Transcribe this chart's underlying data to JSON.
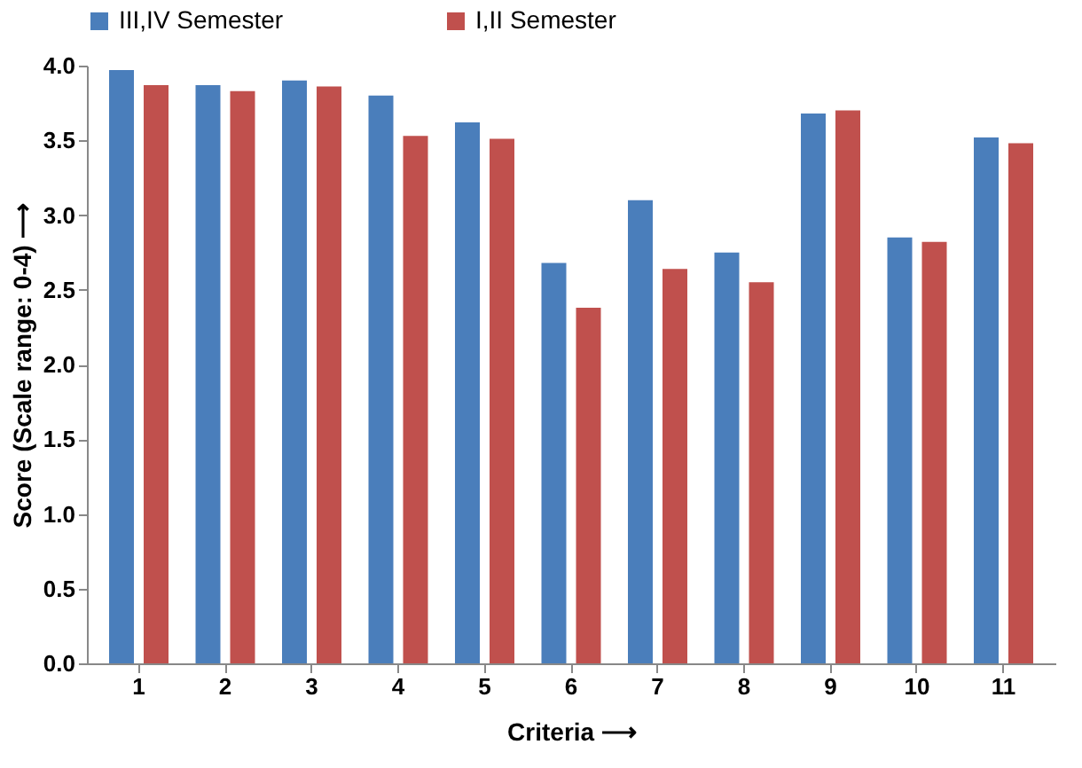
{
  "chart_data": {
    "type": "bar",
    "xlabel": "Criteria ⟶",
    "ylabel": "Score (Scale range: 0-4) ⟶",
    "categories": [
      "1",
      "2",
      "3",
      "4",
      "5",
      "6",
      "7",
      "8",
      "9",
      "10",
      "11"
    ],
    "series": [
      {
        "name": "III,IV Semester",
        "color": "#4a7ebb",
        "values": [
          3.97,
          3.87,
          3.9,
          3.8,
          3.62,
          2.68,
          3.1,
          2.75,
          3.68,
          2.85,
          3.52
        ]
      },
      {
        "name": "I,II Semester",
        "color": "#c0504d",
        "values": [
          3.87,
          3.83,
          3.86,
          3.53,
          3.51,
          2.38,
          2.64,
          2.55,
          3.7,
          2.82,
          3.48
        ]
      }
    ],
    "ylim": [
      0,
      4
    ],
    "yticks": [
      {
        "value": 0,
        "label": "0.0"
      },
      0.5,
      {
        "value": 1,
        "label": "1.0"
      },
      1.5,
      {
        "value": 2,
        "label": "2.0"
      },
      2.5,
      {
        "value": 3,
        "label": "3.0"
      },
      3.5,
      {
        "value": 4,
        "label": "4.0"
      }
    ],
    "grid": false,
    "legend": "top"
  }
}
